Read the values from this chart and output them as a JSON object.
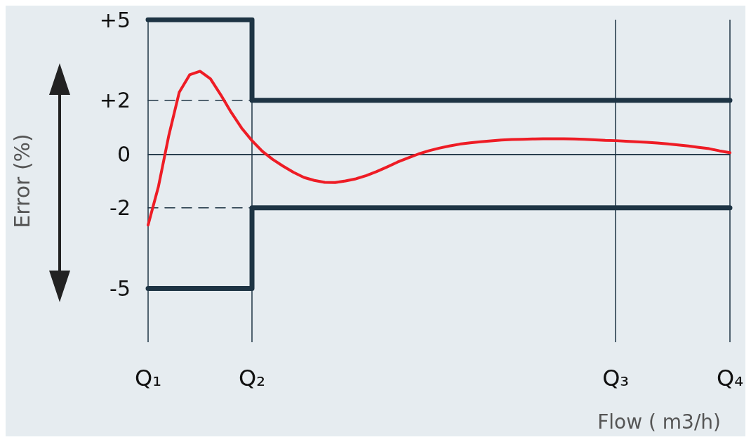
{
  "chart_data": {
    "type": "line",
    "xlabel": "Flow ( m3/h)",
    "ylabel": "Error (%)",
    "categories": [
      "Q₁",
      null,
      null,
      null,
      null,
      null,
      null,
      null,
      null,
      null,
      "Q₂",
      null,
      null,
      null,
      null,
      null,
      null,
      null,
      null,
      null,
      null,
      null,
      null,
      null,
      null,
      null,
      null,
      null,
      null,
      null,
      null,
      null,
      null,
      null,
      null,
      null,
      null,
      null,
      null,
      null,
      null,
      null,
      null,
      null,
      null,
      "Q₃",
      null,
      null,
      null,
      null,
      null,
      null,
      null,
      null,
      null,
      null,
      "Q₄"
    ],
    "ylim": [
      -7,
      5
    ],
    "yticks": [
      {
        "value": 5,
        "label": "+5"
      },
      {
        "value": 2,
        "label": "+2"
      },
      0,
      -2,
      {
        "value": -5,
        "label": "-5"
      }
    ],
    "grid": false,
    "marker": "none",
    "line_style": "solid",
    "ref_lines": [
      {
        "axis": "y",
        "value": 0,
        "color": "#1e3444",
        "line_style": "solid"
      },
      {
        "axis": "x",
        "value": "Q₁",
        "color": "#1e3444"
      },
      {
        "axis": "x",
        "value": "Q₂",
        "color": "#1e3444"
      },
      {
        "axis": "x",
        "value": "Q₃",
        "color": "#1e3444"
      },
      {
        "axis": "x",
        "value": "Q₄",
        "color": "#1e3444"
      }
    ],
    "series": [
      {
        "type": "step",
        "color": "#1e3444",
        "values": [
          5,
          5,
          5,
          5,
          5,
          5,
          5,
          5,
          5,
          5,
          2,
          2,
          2,
          2,
          2,
          2,
          2,
          2,
          2,
          2,
          2,
          2,
          2,
          2,
          2,
          2,
          2,
          2,
          2,
          2,
          2,
          2,
          2,
          2,
          2,
          2,
          2,
          2,
          2,
          2,
          2,
          2,
          2,
          2,
          2,
          2,
          2,
          2,
          2,
          2,
          2,
          2,
          2,
          2,
          2,
          2,
          2
        ]
      },
      {
        "type": "step",
        "color": "#1e3444",
        "values": [
          -5,
          -5,
          -5,
          -5,
          -5,
          -5,
          -5,
          -5,
          -5,
          -5,
          -2,
          -2,
          -2,
          -2,
          -2,
          -2,
          -2,
          -2,
          -2,
          -2,
          -2,
          -2,
          -2,
          -2,
          -2,
          -2,
          -2,
          -2,
          -2,
          -2,
          -2,
          -2,
          -2,
          -2,
          -2,
          -2,
          -2,
          -2,
          -2,
          -2,
          -2,
          -2,
          -2,
          -2,
          -2,
          -2,
          -2,
          -2,
          -2,
          -2,
          -2,
          -2,
          -2,
          -2,
          -2,
          -2,
          -2
        ]
      },
      {
        "color": "#1e3444",
        "line_style": "dashed",
        "values": [
          2,
          2,
          2,
          2,
          2,
          2,
          2,
          2,
          2,
          2,
          2,
          null,
          null,
          null,
          null,
          null,
          null,
          null,
          null,
          null,
          null,
          null,
          null,
          null,
          null,
          null,
          null,
          null,
          null,
          null,
          null,
          null,
          null,
          null,
          null,
          null,
          null,
          null,
          null,
          null,
          null,
          null,
          null,
          null,
          null,
          null,
          null,
          null,
          null,
          null,
          null,
          null,
          null,
          null,
          null,
          null,
          null
        ]
      },
      {
        "color": "#1e3444",
        "line_style": "dashed",
        "values": [
          -2,
          -2,
          -2,
          -2,
          -2,
          -2,
          -2,
          -2,
          -2,
          -2,
          -2,
          null,
          null,
          null,
          null,
          null,
          null,
          null,
          null,
          null,
          null,
          null,
          null,
          null,
          null,
          null,
          null,
          null,
          null,
          null,
          null,
          null,
          null,
          null,
          null,
          null,
          null,
          null,
          null,
          null,
          null,
          null,
          null,
          null,
          null,
          null,
          null,
          null,
          null,
          null,
          null,
          null,
          null,
          null,
          null,
          null,
          null
        ]
      },
      {
        "color": "#ee1c25",
        "values": [
          -2.64,
          -1.2,
          0.7,
          2.3,
          2.95,
          3.08,
          2.8,
          2.2,
          1.55,
          0.97,
          0.5,
          0.1,
          -0.2,
          -0.45,
          -0.68,
          -0.87,
          -0.98,
          -1.05,
          -1.06,
          -1.0,
          -0.92,
          -0.8,
          -0.65,
          -0.48,
          -0.3,
          -0.15,
          0.0,
          0.12,
          0.22,
          0.3,
          0.37,
          0.42,
          0.46,
          0.49,
          0.52,
          0.54,
          0.55,
          0.56,
          0.57,
          0.57,
          0.57,
          0.56,
          0.55,
          0.53,
          0.51,
          0.5,
          0.48,
          0.46,
          0.44,
          0.41,
          0.38,
          0.34,
          0.3,
          0.25,
          0.2,
          0.12,
          0.05
        ]
      }
    ]
  }
}
